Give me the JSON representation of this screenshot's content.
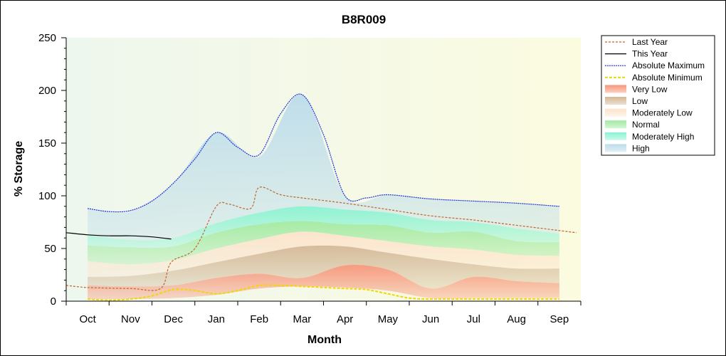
{
  "chart_data": {
    "type": "area",
    "title": "B8R009",
    "xlabel": "Month",
    "ylabel": "% Storage",
    "ylim": [
      0,
      250
    ],
    "yticks": [
      0,
      50,
      100,
      150,
      200,
      250
    ],
    "categories": [
      "Oct",
      "Nov",
      "Dec",
      "Jan",
      "Feb",
      "Mar",
      "Apr",
      "May",
      "Jun",
      "Jul",
      "Aug",
      "Sep"
    ],
    "legend_position": "right",
    "grid": false,
    "background_colors": [
      "#eef7ee",
      "#fbfbe0"
    ],
    "bands": [
      {
        "name": "Very Low",
        "color": "#f7967a",
        "lower": [
          2,
          2,
          3,
          6,
          12,
          14,
          13,
          10,
          3,
          3,
          3,
          3
        ],
        "upper": [
          15,
          14,
          15,
          22,
          26,
          22,
          34,
          30,
          12,
          23,
          19,
          17
        ]
      },
      {
        "name": "Low",
        "color": "#d4b897",
        "lower": [
          15,
          14,
          15,
          22,
          26,
          22,
          34,
          30,
          12,
          23,
          19,
          17
        ],
        "upper": [
          23,
          24,
          29,
          37,
          45,
          52,
          52,
          46,
          40,
          35,
          31,
          31
        ]
      },
      {
        "name": "Moderately Low",
        "color": "#fde3cb",
        "lower": [
          23,
          24,
          29,
          37,
          45,
          52,
          52,
          46,
          40,
          35,
          31,
          31
        ],
        "upper": [
          38,
          35,
          39,
          50,
          59,
          66,
          62,
          57,
          52,
          49,
          44,
          43
        ]
      },
      {
        "name": "Normal",
        "color": "#a2eaa2",
        "lower": [
          38,
          35,
          39,
          50,
          59,
          66,
          62,
          57,
          52,
          49,
          44,
          43
        ],
        "upper": [
          53,
          51,
          52,
          65,
          73,
          76,
          73,
          72,
          65,
          66,
          57,
          56
        ]
      },
      {
        "name": "Moderately High",
        "color": "#8af2d2",
        "lower": [
          53,
          51,
          52,
          65,
          73,
          76,
          73,
          72,
          65,
          66,
          57,
          56
        ],
        "upper": [
          63,
          58,
          60,
          74,
          84,
          90,
          87,
          84,
          77,
          75,
          69,
          64
        ]
      },
      {
        "name": "High",
        "color": "#bcdcea",
        "lower": [
          63,
          58,
          60,
          74,
          84,
          90,
          87,
          84,
          77,
          75,
          69,
          64
        ],
        "upper": [
          88,
          85,
          112,
          160,
          137,
          196,
          100,
          101,
          97,
          95,
          93,
          90
        ]
      }
    ],
    "series": [
      {
        "name": "Last Year",
        "color": "#c0642e",
        "dash": "3,2",
        "points": [
          [
            -0.5,
            15
          ],
          [
            0,
            13
          ],
          [
            1,
            12
          ],
          [
            1.7,
            12
          ],
          [
            1.95,
            37
          ],
          [
            2.5,
            50
          ],
          [
            3,
            90
          ],
          [
            3.3,
            92
          ],
          [
            3.8,
            88
          ],
          [
            4,
            108
          ],
          [
            4.5,
            101
          ],
          [
            5,
            98
          ],
          [
            6,
            93
          ],
          [
            7,
            87
          ],
          [
            8,
            81
          ],
          [
            9,
            77
          ],
          [
            10,
            72
          ],
          [
            11,
            67
          ],
          [
            11.4,
            65
          ]
        ]
      },
      {
        "name": "This Year",
        "color": "#000000",
        "dash": "",
        "points": [
          [
            -0.5,
            65
          ],
          [
            0,
            63
          ],
          [
            0.5,
            62
          ],
          [
            1,
            62
          ],
          [
            1.5,
            61
          ],
          [
            1.95,
            59
          ]
        ]
      },
      {
        "name": "Absolute Maximum",
        "color": "#1c2fd6",
        "dash": "2,1",
        "points": [
          [
            0,
            88
          ],
          [
            0.5,
            85
          ],
          [
            1,
            86
          ],
          [
            1.5,
            95
          ],
          [
            2,
            112
          ],
          [
            2.5,
            135
          ],
          [
            3,
            160
          ],
          [
            3.5,
            146
          ],
          [
            4,
            139
          ],
          [
            4.5,
            178
          ],
          [
            5,
            196
          ],
          [
            5.5,
            158
          ],
          [
            6,
            100
          ],
          [
            6.5,
            98
          ],
          [
            7,
            101
          ],
          [
            8,
            97
          ],
          [
            9,
            95
          ],
          [
            10,
            93
          ],
          [
            11,
            90
          ]
        ]
      },
      {
        "name": "Absolute Minimum",
        "color": "#f2d600",
        "dash": "4,2",
        "points": [
          [
            0,
            2
          ],
          [
            0.5,
            1
          ],
          [
            1,
            2
          ],
          [
            1.5,
            5
          ],
          [
            2,
            11
          ],
          [
            2.5,
            10
          ],
          [
            3,
            7
          ],
          [
            3.5,
            10
          ],
          [
            4,
            15
          ],
          [
            4.5,
            15
          ],
          [
            5,
            14
          ],
          [
            6,
            12
          ],
          [
            6.5,
            11
          ],
          [
            7,
            7
          ],
          [
            7.5,
            3
          ],
          [
            8,
            2
          ],
          [
            9,
            2
          ],
          [
            10,
            2
          ],
          [
            11,
            2
          ]
        ]
      }
    ],
    "legend": [
      {
        "label": "Last Year",
        "kind": "line",
        "color": "#c0642e",
        "dash": "3,2"
      },
      {
        "label": "This Year",
        "kind": "line",
        "color": "#000000",
        "dash": ""
      },
      {
        "label": "Absolute Maximum",
        "kind": "line",
        "color": "#1c2fd6",
        "dash": "2,1"
      },
      {
        "label": "Absolute Minimum",
        "kind": "line",
        "color": "#f2d600",
        "dash": "4,2"
      },
      {
        "label": "Very Low",
        "kind": "area",
        "color": "#f7967a"
      },
      {
        "label": "Low",
        "kind": "area",
        "color": "#d4b897"
      },
      {
        "label": "Moderately Low",
        "kind": "area",
        "color": "#fde3cb"
      },
      {
        "label": "Normal",
        "kind": "area",
        "color": "#a2eaa2"
      },
      {
        "label": "Moderately High",
        "kind": "area",
        "color": "#8af2d2"
      },
      {
        "label": "High",
        "kind": "area",
        "color": "#bcdcea"
      }
    ]
  }
}
